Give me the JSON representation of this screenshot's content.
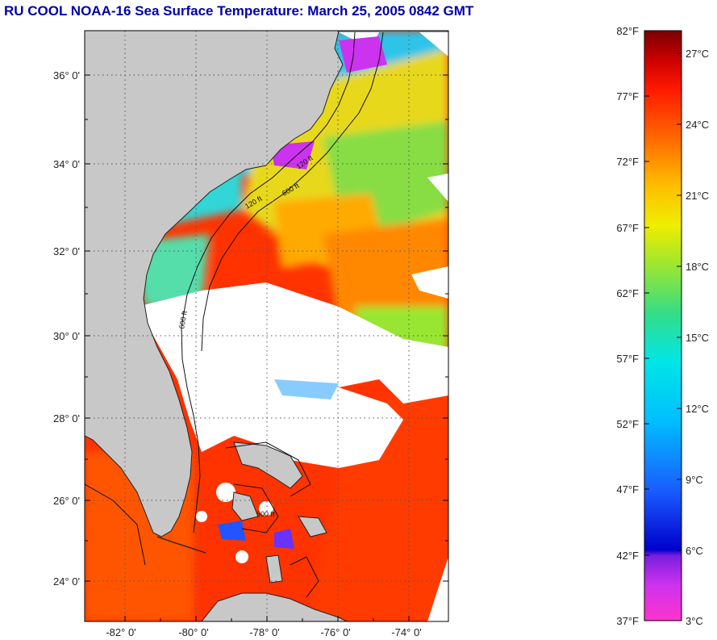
{
  "title": "RU COOL  NOAA-16  Sea Surface Temperature:  March 25, 2005 0842 GMT",
  "map": {
    "lat_ticks": [
      "36° 0'",
      "34° 0'",
      "32° 0'",
      "30° 0'",
      "28° 0'",
      "26° 0'",
      "24° 0'"
    ],
    "lon_ticks": [
      "-82° 0'",
      "-80° 0'",
      "-78° 0'",
      "-76° 0'",
      "-74° 0'"
    ],
    "contour_labels": [
      "120 ft",
      "600 ft",
      "120 ft",
      "600 ft",
      "600 ft"
    ],
    "colors": {
      "land": "#c8c8c8",
      "cloud": "#ffffff",
      "grid": "#555555"
    }
  },
  "colorbar": {
    "fahrenheit_labels": [
      "82°F",
      "77°F",
      "72°F",
      "67°F",
      "62°F",
      "57°F",
      "52°F",
      "47°F",
      "42°F",
      "37°F"
    ],
    "celsius_labels": [
      "27°C",
      "24°C",
      "21°C",
      "18°C",
      "15°C",
      "12°C",
      "9°C",
      "6°C",
      "3°C"
    ],
    "range_f": [
      37,
      82
    ],
    "range_c": [
      3,
      27.8
    ]
  }
}
